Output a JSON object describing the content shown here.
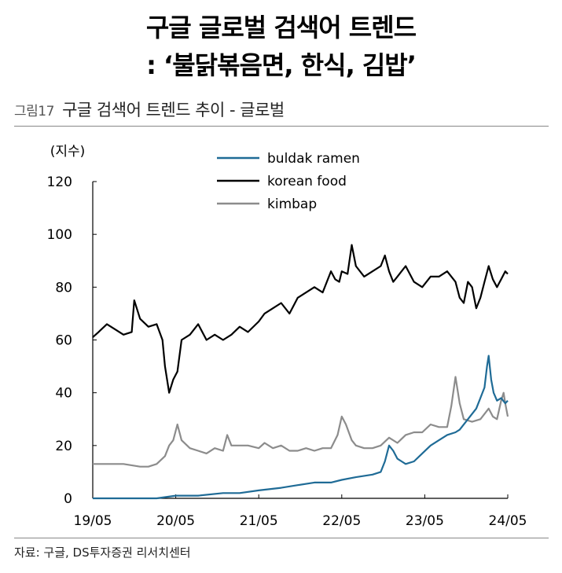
{
  "headline": {
    "line1": "구글 글로벌 검색어 트렌드",
    "line2": ": ‘불닭볶음면, 한식, 김밥’"
  },
  "figure": {
    "number": "그림17",
    "title": "구글 검색어 트렌드 추이 - 글로벌"
  },
  "source": "자료: 구글, DS투자증권 리서치센터",
  "colors": {
    "buldak": "#1f6b96",
    "korean": "#000000",
    "kimbap": "#8c8c8c"
  },
  "chart_data": {
    "type": "line",
    "ylabel": "(지수)",
    "ylim": [
      0,
      120
    ],
    "yticks": [
      "120",
      "100",
      "80",
      "60",
      "40",
      "20",
      "0"
    ],
    "xlim": [
      2019.33,
      2024.33
    ],
    "xticks": [
      "19/05",
      "20/05",
      "21/05",
      "22/05",
      "23/05",
      "24/05"
    ],
    "legend_position": "top-center",
    "series": [
      {
        "name": "buldak ramen",
        "color": "#1f6b96",
        "points": [
          [
            2019.33,
            0
          ],
          [
            2019.6,
            0
          ],
          [
            2019.9,
            0
          ],
          [
            2020.1,
            0
          ],
          [
            2020.33,
            1
          ],
          [
            2020.6,
            1
          ],
          [
            2020.9,
            2
          ],
          [
            2021.1,
            2
          ],
          [
            2021.33,
            3
          ],
          [
            2021.6,
            4
          ],
          [
            2021.8,
            5
          ],
          [
            2022.0,
            6
          ],
          [
            2022.2,
            6
          ],
          [
            2022.33,
            7
          ],
          [
            2022.5,
            8
          ],
          [
            2022.7,
            9
          ],
          [
            2022.8,
            10
          ],
          [
            2022.85,
            14
          ],
          [
            2022.9,
            20
          ],
          [
            2022.95,
            18
          ],
          [
            2023.0,
            15
          ],
          [
            2023.1,
            13
          ],
          [
            2023.2,
            14
          ],
          [
            2023.3,
            17
          ],
          [
            2023.4,
            20
          ],
          [
            2023.5,
            22
          ],
          [
            2023.6,
            24
          ],
          [
            2023.7,
            25
          ],
          [
            2023.75,
            26
          ],
          [
            2023.85,
            30
          ],
          [
            2023.95,
            34
          ],
          [
            2024.0,
            38
          ],
          [
            2024.05,
            42
          ],
          [
            2024.08,
            50
          ],
          [
            2024.1,
            54
          ],
          [
            2024.13,
            45
          ],
          [
            2024.16,
            40
          ],
          [
            2024.2,
            37
          ],
          [
            2024.25,
            38
          ],
          [
            2024.3,
            36
          ],
          [
            2024.33,
            37
          ]
        ]
      },
      {
        "name": "korean food",
        "color": "#000000",
        "points": [
          [
            2019.33,
            61
          ],
          [
            2019.4,
            63
          ],
          [
            2019.5,
            66
          ],
          [
            2019.6,
            64
          ],
          [
            2019.7,
            62
          ],
          [
            2019.8,
            63
          ],
          [
            2019.83,
            75
          ],
          [
            2019.9,
            68
          ],
          [
            2020.0,
            65
          ],
          [
            2020.1,
            66
          ],
          [
            2020.17,
            60
          ],
          [
            2020.2,
            50
          ],
          [
            2020.25,
            40
          ],
          [
            2020.3,
            45
          ],
          [
            2020.35,
            48
          ],
          [
            2020.4,
            60
          ],
          [
            2020.5,
            62
          ],
          [
            2020.6,
            66
          ],
          [
            2020.7,
            60
          ],
          [
            2020.8,
            62
          ],
          [
            2020.9,
            60
          ],
          [
            2021.0,
            62
          ],
          [
            2021.1,
            65
          ],
          [
            2021.2,
            63
          ],
          [
            2021.33,
            67
          ],
          [
            2021.4,
            70
          ],
          [
            2021.5,
            72
          ],
          [
            2021.6,
            74
          ],
          [
            2021.7,
            70
          ],
          [
            2021.8,
            76
          ],
          [
            2021.9,
            78
          ],
          [
            2022.0,
            80
          ],
          [
            2022.1,
            78
          ],
          [
            2022.15,
            82
          ],
          [
            2022.2,
            86
          ],
          [
            2022.25,
            83
          ],
          [
            2022.3,
            82
          ],
          [
            2022.33,
            86
          ],
          [
            2022.4,
            85
          ],
          [
            2022.45,
            96
          ],
          [
            2022.5,
            88
          ],
          [
            2022.6,
            84
          ],
          [
            2022.7,
            86
          ],
          [
            2022.8,
            88
          ],
          [
            2022.85,
            92
          ],
          [
            2022.9,
            86
          ],
          [
            2022.95,
            82
          ],
          [
            2023.0,
            84
          ],
          [
            2023.1,
            88
          ],
          [
            2023.2,
            82
          ],
          [
            2023.3,
            80
          ],
          [
            2023.4,
            84
          ],
          [
            2023.5,
            84
          ],
          [
            2023.6,
            86
          ],
          [
            2023.7,
            82
          ],
          [
            2023.75,
            76
          ],
          [
            2023.8,
            74
          ],
          [
            2023.85,
            82
          ],
          [
            2023.9,
            80
          ],
          [
            2023.95,
            72
          ],
          [
            2024.0,
            76
          ],
          [
            2024.05,
            82
          ],
          [
            2024.1,
            88
          ],
          [
            2024.15,
            83
          ],
          [
            2024.2,
            80
          ],
          [
            2024.25,
            83
          ],
          [
            2024.3,
            86
          ],
          [
            2024.33,
            85
          ]
        ]
      },
      {
        "name": "kimbap",
        "color": "#8c8c8c",
        "points": [
          [
            2019.33,
            13
          ],
          [
            2019.5,
            13
          ],
          [
            2019.7,
            13
          ],
          [
            2019.9,
            12
          ],
          [
            2020.0,
            12
          ],
          [
            2020.1,
            13
          ],
          [
            2020.2,
            16
          ],
          [
            2020.25,
            20
          ],
          [
            2020.3,
            22
          ],
          [
            2020.35,
            28
          ],
          [
            2020.4,
            22
          ],
          [
            2020.5,
            19
          ],
          [
            2020.6,
            18
          ],
          [
            2020.7,
            17
          ],
          [
            2020.8,
            19
          ],
          [
            2020.9,
            18
          ],
          [
            2020.95,
            24
          ],
          [
            2021.0,
            20
          ],
          [
            2021.1,
            20
          ],
          [
            2021.2,
            20
          ],
          [
            2021.33,
            19
          ],
          [
            2021.4,
            21
          ],
          [
            2021.5,
            19
          ],
          [
            2021.6,
            20
          ],
          [
            2021.7,
            18
          ],
          [
            2021.8,
            18
          ],
          [
            2021.9,
            19
          ],
          [
            2022.0,
            18
          ],
          [
            2022.1,
            19
          ],
          [
            2022.2,
            19
          ],
          [
            2022.28,
            24
          ],
          [
            2022.33,
            31
          ],
          [
            2022.38,
            28
          ],
          [
            2022.45,
            22
          ],
          [
            2022.5,
            20
          ],
          [
            2022.6,
            19
          ],
          [
            2022.7,
            19
          ],
          [
            2022.8,
            20
          ],
          [
            2022.9,
            23
          ],
          [
            2023.0,
            21
          ],
          [
            2023.1,
            24
          ],
          [
            2023.2,
            25
          ],
          [
            2023.3,
            25
          ],
          [
            2023.4,
            28
          ],
          [
            2023.5,
            27
          ],
          [
            2023.6,
            27
          ],
          [
            2023.65,
            35
          ],
          [
            2023.7,
            46
          ],
          [
            2023.75,
            36
          ],
          [
            2023.8,
            30
          ],
          [
            2023.9,
            29
          ],
          [
            2024.0,
            30
          ],
          [
            2024.1,
            34
          ],
          [
            2024.15,
            31
          ],
          [
            2024.2,
            30
          ],
          [
            2024.25,
            37
          ],
          [
            2024.28,
            40
          ],
          [
            2024.3,
            36
          ],
          [
            2024.33,
            31
          ]
        ]
      }
    ]
  }
}
